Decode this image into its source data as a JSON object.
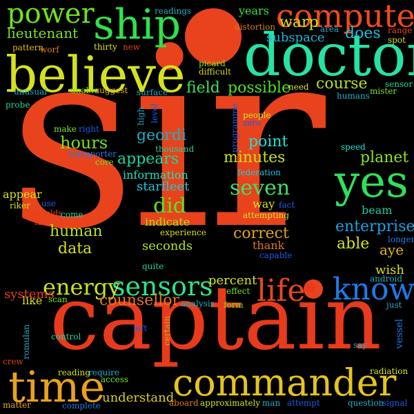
{
  "words": {
    "sir": {
      "text": "sir",
      "color": "#e8431c"
    },
    "captain": {
      "text": "captain",
      "color": "#e83a1c"
    },
    "doctor": {
      "text": "doctor",
      "color": "#27e2a6"
    },
    "believe": {
      "text": "believe",
      "color": "#d4e21e"
    },
    "commander": {
      "text": "commander",
      "color": "#e5c41c"
    },
    "yes": {
      "text": "yes",
      "color": "#2fe05c"
    },
    "computer": {
      "text": "computer",
      "color": "#f04a1c"
    },
    "ship": {
      "text": "ship",
      "color": "#2ee24a"
    },
    "time": {
      "text": "time",
      "color": "#e8a21c"
    },
    "know": {
      "text": "know",
      "color": "#1c7be8"
    },
    "power": {
      "text": "power",
      "color": "#6fe21c"
    },
    "sensors": {
      "text": "sensors",
      "color": "#2ee28a"
    },
    "life": {
      "text": "life",
      "color": "#e8481c"
    },
    "energy": {
      "text": "energy",
      "color": "#c8e21c"
    },
    "did": {
      "text": "did",
      "color": "#5ce21c"
    },
    "seven": {
      "text": "seven",
      "color": "#3ce26c"
    },
    "field": {
      "text": "field",
      "color": "#3ce25c"
    },
    "possible": {
      "text": "possible",
      "color": "#4ee21c"
    },
    "course": {
      "text": "course",
      "color": "#b6e21c"
    },
    "lieutenant": {
      "text": "lieutenant",
      "color": "#7ce21c"
    },
    "years": {
      "text": "years",
      "color": "#3ee23e"
    },
    "warp": {
      "text": "warp",
      "color": "#c9e21c"
    },
    "does": {
      "text": "does",
      "color": "#1cbfe2"
    },
    "subspace": {
      "text": "subspace",
      "color": "#1cb6d6"
    },
    "hours": {
      "text": "hours",
      "color": "#78e21c"
    },
    "appears": {
      "text": "appears",
      "color": "#1cd6a2"
    },
    "information": {
      "text": "information",
      "color": "#1ce2c4"
    },
    "starfleet": {
      "text": "starfleet",
      "color": "#1cc8e2"
    },
    "geordi": {
      "text": "geordi",
      "color": "#1cb0c8"
    },
    "point": {
      "text": "point",
      "color": "#1ce2d6"
    },
    "minutes": {
      "text": "minutes",
      "color": "#c4e21c"
    },
    "planet": {
      "text": "planet",
      "color": "#8ee21c"
    },
    "counsellor": {
      "text": "counsellor",
      "color": "#e2781c"
    },
    "human": {
      "text": "human",
      "color": "#b6e21c"
    },
    "data": {
      "text": "data",
      "color": "#d6e21c"
    },
    "correct": {
      "text": "correct",
      "color": "#e2a41c"
    },
    "enterprise": {
      "text": "enterprise",
      "color": "#1ca2e2"
    },
    "able": {
      "text": "able",
      "color": "#d6e21c"
    },
    "aye": {
      "text": "aye",
      "color": "#e2b61c"
    },
    "percent": {
      "text": "percent",
      "color": "#d6e21c"
    },
    "understand": {
      "text": "understand",
      "color": "#d6d21c"
    },
    "systems": {
      "text": "systems",
      "color": "#e2401c"
    },
    "indicate": {
      "text": "indicate",
      "color": "#a0e21c"
    },
    "seconds": {
      "text": "seconds",
      "color": "#b6e21c"
    },
    "appear": {
      "text": "appear",
      "color": "#d6e21c"
    },
    "like": {
      "text": "like",
      "color": "#d6e21c"
    },
    "thank": {
      "text": "thank",
      "color": "#e2781c"
    },
    "wish": {
      "text": "wish",
      "color": "#d6e21c"
    },
    "beam": {
      "text": "beam",
      "color": "#1cc8a2"
    },
    "way": {
      "text": "way",
      "color": "#d6e21c"
    },
    "federation": {
      "text": "federation",
      "color": "#1cc8e2"
    },
    "thousand": {
      "text": "thousand",
      "color": "#1cd6a2"
    },
    "transporter": {
      "text": "transporter",
      "color": "#1c7be8"
    },
    "core": {
      "text": "core",
      "color": "#78e21c"
    },
    "make": {
      "text": "make",
      "color": "#78e21c"
    },
    "right": {
      "text": "right",
      "color": "#1c5ce8"
    },
    "high": {
      "text": "high",
      "color": "#1cb0c8"
    },
    "level": {
      "text": "level",
      "color": "#1c5ce8"
    },
    "programme": {
      "text": "programme",
      "color": "#1c5ce8"
    },
    "people": {
      "text": "people",
      "color": "#d6e21c"
    },
    "zero": {
      "text": "zero",
      "color": "#1c5ce8"
    },
    "speed": {
      "text": "speed",
      "color": "#1ce2d6"
    },
    "readings": {
      "text": "readings",
      "color": "#1cb0c8"
    },
    "distortion": {
      "text": "distortion",
      "color": "#e2781c"
    },
    "area": {
      "text": "area",
      "color": "#1cb0c8"
    },
    "range": {
      "text": "range",
      "color": "#e2401c"
    },
    "spot": {
      "text": "spot",
      "color": "#d6e21c"
    },
    "pattern": {
      "text": "pattern",
      "color": "#e2b61c"
    },
    "worf": {
      "text": "worf",
      "color": "#e2781c"
    },
    "thirty": {
      "text": "thirty",
      "color": "#d6e21c"
    },
    "new": {
      "text": "new",
      "color": "#e2401c"
    },
    "picard": {
      "text": "picard",
      "color": "#78e21c"
    },
    "difficult": {
      "text": "difficult",
      "color": "#d6d21c"
    },
    "unusual": {
      "text": "unusual",
      "color": "#1cb0c8"
    },
    "unable": {
      "text": "unable",
      "color": "#78e21c"
    },
    "suggest": {
      "text": "suggest",
      "color": "#e2b61c"
    },
    "surface": {
      "text": "surface",
      "color": "#1cb0c8"
    },
    "need": {
      "text": "need",
      "color": "#d6e21c"
    },
    "humans": {
      "text": "humans",
      "color": "#1cb0c8"
    },
    "mister": {
      "text": "mister",
      "color": "#78e21c"
    },
    "sensor": {
      "text": "sensor",
      "color": "#1cd6a2"
    },
    "probe": {
      "text": "probe",
      "color": "#1cd6a2"
    },
    "riker": {
      "text": "riker",
      "color": "#d6e21c"
    },
    "use": {
      "text": "use",
      "color": "#1c5ce8"
    },
    "shields": {
      "text": "shields",
      "color": "#e2401c"
    },
    "lal": {
      "text": "lal",
      "color": "#e2401c"
    },
    "come": {
      "text": "come",
      "color": "#1cd6a2"
    },
    "fact": {
      "text": "fact",
      "color": "#1c5ce8"
    },
    "attempting": {
      "text": "attempting",
      "color": "#d6e21c"
    },
    "experience": {
      "text": "experience",
      "color": "#d6e21c"
    },
    "longer": {
      "text": "longer",
      "color": "#1c7be8"
    },
    "capable": {
      "text": "capable",
      "color": "#1c5ce8"
    },
    "quite": {
      "text": "quite",
      "color": "#1cd6a2"
    },
    "android": {
      "text": "android",
      "color": "#1cb0c8"
    },
    "effect": {
      "text": "effect",
      "color": "#78e21c"
    },
    "analysis": {
      "text": "analysis",
      "color": "#1cb0c8"
    },
    "form": {
      "text": "form",
      "color": "#78e21c"
    },
    "just": {
      "text": "just",
      "color": "#1cb0c8"
    },
    "scan": {
      "text": "scan",
      "color": "#78e21c"
    },
    "left": {
      "text": "left",
      "color": "#1c5ce8"
    },
    "certain": {
      "text": "certain",
      "color": "#e2a41c"
    },
    "control": {
      "text": "control",
      "color": "#1cd6a2"
    },
    "romulan": {
      "text": "romulan",
      "color": "#1cb0c8"
    },
    "vessel": {
      "text": "vessel",
      "color": "#1c7be8"
    },
    "say": {
      "text": "say",
      "color": "#1cb0c8"
    },
    "crew": {
      "text": "crew",
      "color": "#e2401c"
    },
    "reading": {
      "text": "reading",
      "color": "#d6e21c"
    },
    "require": {
      "text": "require",
      "color": "#1cb0c8"
    },
    "access": {
      "text": "access",
      "color": "#78e21c"
    },
    "radiation": {
      "text": "radiation",
      "color": "#d6e21c"
    },
    "matter": {
      "text": "matter",
      "color": "#e2a41c"
    },
    "complete": {
      "text": "complete",
      "color": "#1c7be8"
    },
    "aboard": {
      "text": "aboard",
      "color": "#e2781c"
    },
    "approximately": {
      "text": "approximately",
      "color": "#d6e21c"
    },
    "man": {
      "text": "man",
      "color": "#1cb0c8"
    },
    "attempt": {
      "text": "attempt",
      "color": "#1c5ce8"
    },
    "question": {
      "text": "question",
      "color": "#1cb0c8"
    },
    "signal": {
      "text": "signal",
      "color": "#1c5ce8"
    }
  },
  "dots": {
    "color": "#e8431c"
  }
}
